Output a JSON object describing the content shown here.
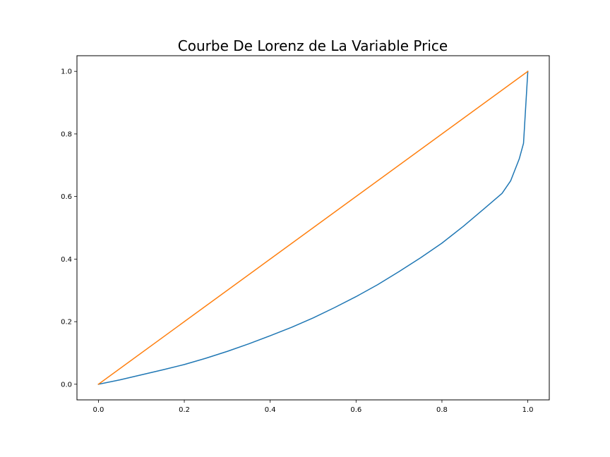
{
  "chart_data": {
    "type": "line",
    "title": "Courbe De Lorenz de La Variable Price",
    "xlabel": "",
    "ylabel": "",
    "xlim": [
      -0.05,
      1.05
    ],
    "ylim": [
      -0.05,
      1.05
    ],
    "x_ticks": [
      0.0,
      0.2,
      0.4,
      0.6,
      0.8,
      1.0
    ],
    "x_tick_labels": [
      "0.0",
      "0.2",
      "0.4",
      "0.6",
      "0.8",
      "1.0"
    ],
    "y_ticks": [
      0.0,
      0.2,
      0.4,
      0.6,
      0.8,
      1.0
    ],
    "y_tick_labels": [
      "0.0",
      "0.2",
      "0.4",
      "0.6",
      "0.8",
      "1.0"
    ],
    "grid": false,
    "legend": "none",
    "series": [
      {
        "color": "#1f77b4",
        "x": [
          0.0,
          0.05,
          0.1,
          0.15,
          0.2,
          0.25,
          0.3,
          0.35,
          0.4,
          0.45,
          0.5,
          0.55,
          0.6,
          0.65,
          0.7,
          0.75,
          0.8,
          0.85,
          0.9,
          0.94,
          0.96,
          0.98,
          0.99,
          1.0
        ],
        "y": [
          0.0,
          0.014,
          0.03,
          0.046,
          0.063,
          0.083,
          0.105,
          0.129,
          0.155,
          0.182,
          0.212,
          0.245,
          0.28,
          0.318,
          0.36,
          0.404,
          0.451,
          0.505,
          0.563,
          0.61,
          0.65,
          0.72,
          0.77,
          1.0
        ]
      },
      {
        "color": "#ff7f0e",
        "x": [
          0.0,
          1.0
        ],
        "y": [
          0.0,
          1.0
        ]
      }
    ]
  }
}
